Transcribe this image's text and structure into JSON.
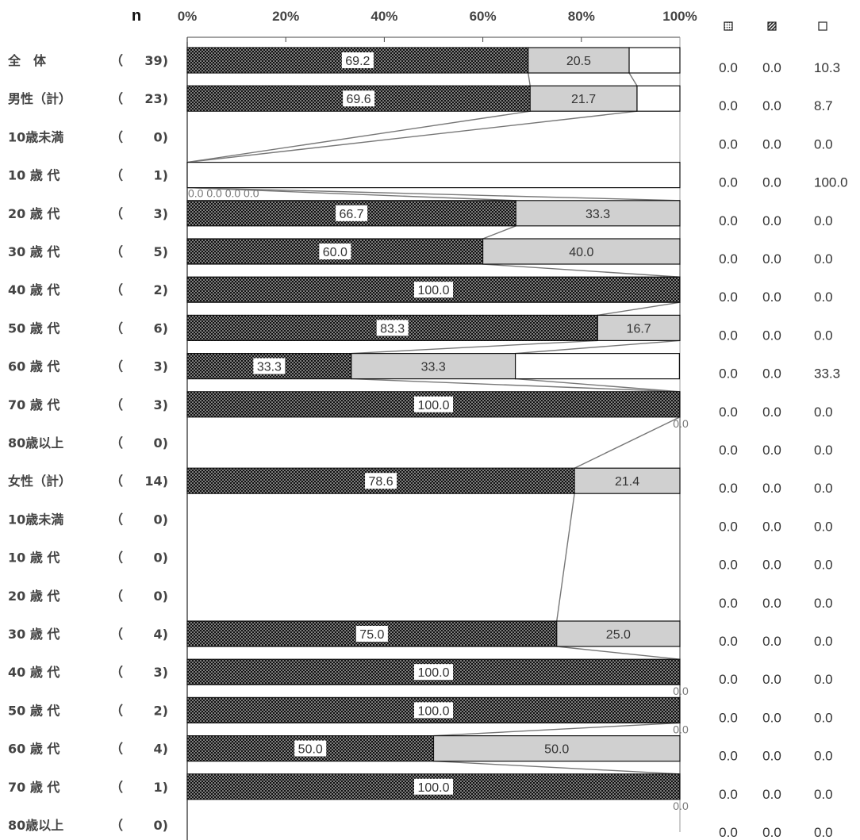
{
  "chart_data": {
    "type": "bar",
    "stacked": true,
    "orientation": "horizontal",
    "n_header": "n",
    "x_ticks": [
      "0%",
      "20%",
      "40%",
      "60%",
      "80%",
      "100%"
    ],
    "xlim": [
      0,
      100
    ],
    "legend_icons": [
      "dotted-fine-square-icon",
      "hatched-square-icon",
      "empty-square-icon"
    ],
    "categories": [
      "全　体",
      "男性（計）",
      "10歳未満",
      "10 歳 代",
      "20 歳 代",
      "30 歳 代",
      "40 歳 代",
      "50 歳 代",
      "60 歳 代",
      "70 歳 代",
      "80歳以上",
      "女性（計）",
      "10歳未満",
      "10 歳 代",
      "20 歳 代",
      "30 歳 代",
      "40 歳 代",
      "50 歳 代",
      "60 歳 代",
      "70 歳 代",
      "80歳以上"
    ],
    "n_values": [
      "39)",
      "23)",
      "0)",
      "1)",
      "3)",
      "5)",
      "2)",
      "6)",
      "3)",
      "3)",
      "0)",
      "14)",
      "0)",
      "0)",
      "0)",
      "4)",
      "3)",
      "2)",
      "4)",
      "1)",
      "0)"
    ],
    "series": [
      {
        "values": [
          69.2,
          69.6,
          0,
          0,
          66.7,
          60.0,
          100.0,
          83.3,
          33.3,
          100.0,
          0,
          78.6,
          0,
          0,
          0,
          75.0,
          100.0,
          100.0,
          50.0,
          100.0,
          0
        ],
        "labels": [
          "69.2",
          "69.6",
          "",
          "",
          "66.7",
          "60.0",
          "100.0",
          "83.3",
          "33.3",
          "100.0",
          "",
          "78.6",
          "",
          "",
          "",
          "75.0",
          "100.0",
          "100.0",
          "50.0",
          "100.0",
          ""
        ]
      },
      {
        "values": [
          20.5,
          21.7,
          0,
          0,
          33.3,
          40.0,
          0,
          16.7,
          33.3,
          0,
          0,
          21.4,
          0,
          0,
          0,
          25.0,
          0,
          0,
          50.0,
          0,
          0
        ],
        "labels": [
          "20.5",
          "21.7",
          "",
          "",
          "33.3",
          "40.0",
          "",
          "16.7",
          "33.3",
          "",
          "",
          "21.4",
          "",
          "",
          "",
          "25.0",
          "",
          "",
          "50.0",
          "",
          ""
        ]
      },
      {
        "values": [
          10.3,
          8.7,
          0,
          100.0,
          0,
          0,
          0,
          0,
          33.3,
          0,
          0,
          0,
          0,
          0,
          0,
          0,
          0,
          0,
          0,
          0,
          0
        ],
        "labels": [
          "",
          "",
          "",
          "",
          "",
          "",
          "",
          "",
          "",
          "",
          "",
          "",
          "",
          "",
          "",
          "",
          "",
          "",
          "",
          "",
          ""
        ]
      }
    ],
    "side_columns": [
      [
        "0.0",
        "0.0",
        "0.0",
        "0.0",
        "0.0",
        "0.0",
        "0.0",
        "0.0",
        "0.0",
        "0.0",
        "0.0",
        "0.0",
        "0.0",
        "0.0",
        "0.0",
        "0.0",
        "0.0",
        "0.0",
        "0.0",
        "0.0",
        "0.0"
      ],
      [
        "0.0",
        "0.0",
        "0.0",
        "0.0",
        "0.0",
        "0.0",
        "0.0",
        "0.0",
        "0.0",
        "0.0",
        "0.0",
        "0.0",
        "0.0",
        "0.0",
        "0.0",
        "0.0",
        "0.0",
        "0.0",
        "0.0",
        "0.0",
        "0.0"
      ],
      [
        "10.3",
        "8.7",
        "0.0",
        "100.0",
        "0.0",
        "0.0",
        "0.0",
        "0.0",
        "33.3",
        "0.0",
        "0.0",
        "0.0",
        "0.0",
        "0.0",
        "0.0",
        "0.0",
        "0.0",
        "0.0",
        "0.0",
        "0.0",
        "0.0"
      ]
    ],
    "stray_labels": [
      {
        "row": 3,
        "text": "0.0 0.0"
      },
      {
        "row": 9,
        "text": "0.0"
      },
      {
        "row": 16,
        "text": "0.0"
      },
      {
        "row": 17,
        "text": "0.0"
      },
      {
        "row": 19,
        "text": "0.0"
      }
    ],
    "colors": {
      "series1": "#111111",
      "series1_dots": "#ffffff",
      "series2": "#d0d0d0",
      "series3": "#ffffff",
      "connector": "#777777",
      "border": "#111111"
    }
  }
}
